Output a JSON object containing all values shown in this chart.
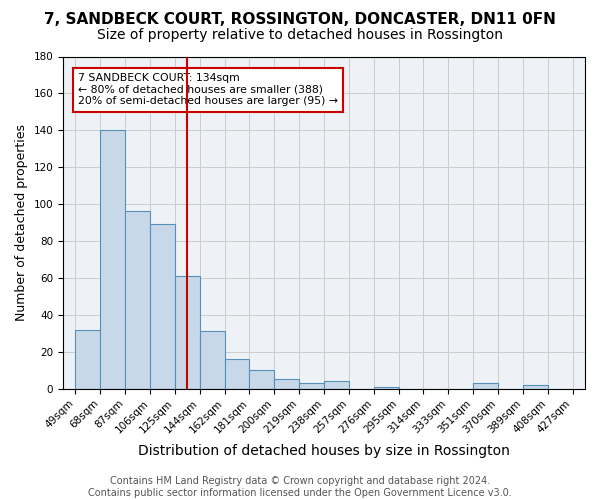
{
  "title": "7, SANDBECK COURT, ROSSINGTON, DONCASTER, DN11 0FN",
  "subtitle": "Size of property relative to detached houses in Rossington",
  "xlabel": "Distribution of detached houses by size in Rossington",
  "ylabel": "Number of detached properties",
  "bin_edges": [
    49,
    68,
    87,
    106,
    125,
    144,
    163,
    182,
    201,
    220,
    239,
    258,
    277,
    296,
    315,
    334,
    353,
    372,
    391,
    410,
    429
  ],
  "bin_labels": [
    "49sqm",
    "68sqm",
    "87sqm",
    "106sqm",
    "125sqm",
    "144sqm",
    "162sqm",
    "181sqm",
    "200sqm",
    "219sqm",
    "238sqm",
    "257sqm",
    "276sqm",
    "295sqm",
    "314sqm",
    "333sqm",
    "351sqm",
    "370sqm",
    "389sqm",
    "408sqm",
    "427sqm"
  ],
  "counts": [
    32,
    140,
    96,
    89,
    61,
    31,
    16,
    10,
    5,
    3,
    4,
    0,
    1,
    0,
    0,
    0,
    3,
    0,
    2,
    0
  ],
  "bar_facecolor": "#c8d8e8",
  "bar_edgecolor": "#5590bb",
  "vline_color": "#cc0000",
  "vline_x": 134,
  "annotation_title": "7 SANDBECK COURT: 134sqm",
  "annotation_line1": "← 80% of detached houses are smaller (388)",
  "annotation_line2": "20% of semi-detached houses are larger (95) →",
  "annotation_box_color": "#cc0000",
  "annotation_text_color": "#000000",
  "grid_color": "#cccccc",
  "background_color": "#eef2f7",
  "ylim": [
    0,
    180
  ],
  "yticks": [
    0,
    20,
    40,
    60,
    80,
    100,
    120,
    140,
    160,
    180
  ],
  "footer_line1": "Contains HM Land Registry data © Crown copyright and database right 2024.",
  "footer_line2": "Contains public sector information licensed under the Open Government Licence v3.0.",
  "title_fontsize": 11,
  "subtitle_fontsize": 10,
  "xlabel_fontsize": 10,
  "ylabel_fontsize": 9,
  "tick_fontsize": 7.5,
  "footer_fontsize": 7
}
